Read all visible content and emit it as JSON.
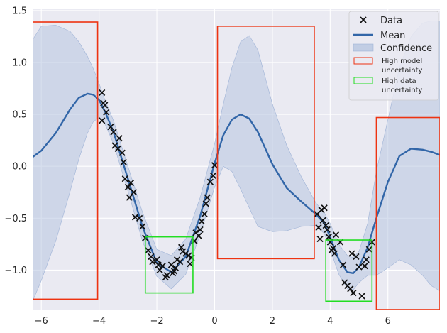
{
  "chart_data": {
    "type": "line",
    "title": "",
    "xlabel": "",
    "ylabel": "",
    "xlim": [
      -6.3,
      7.8
    ],
    "ylim": [
      -1.38,
      1.52
    ],
    "xticks": [
      -6,
      -4,
      -2,
      0,
      2,
      4,
      6
    ],
    "yticks": [
      -1.0,
      -0.5,
      0.0,
      0.5,
      1.0,
      1.5
    ],
    "xtick_labels": [
      "−6",
      "−4",
      "−2",
      "0",
      "2",
      "4",
      "6"
    ],
    "ytick_labels": [
      "−1.0",
      "−0.5",
      "0.0",
      "0.5",
      "1.0",
      "1.5"
    ],
    "grid": true,
    "legend_position": "top-right",
    "colors": {
      "background": "#eaeaf2",
      "mean": "#3266a8",
      "confidence": "#b6c5e0",
      "model_box": "#ee3311",
      "data_box": "#22dd22",
      "points": "#111111"
    },
    "legend": {
      "data": "Data",
      "mean": "Mean",
      "confidence": "Confidence",
      "model": [
        "High model",
        "uncertainty"
      ],
      "data_unc": [
        "High data",
        "uncertainty"
      ]
    },
    "mean": {
      "name": "Mean",
      "x": [
        -6.3,
        -6.0,
        -5.5,
        -5.0,
        -4.7,
        -4.4,
        -4.2,
        -4.0,
        -3.8,
        -3.5,
        -3.0,
        -2.5,
        -2.0,
        -1.5,
        -1.0,
        -0.5,
        0.0,
        0.3,
        0.6,
        0.9,
        1.2,
        1.5,
        2.0,
        2.5,
        3.0,
        3.5,
        3.8,
        4.0,
        4.3,
        4.6,
        4.8,
        5.0,
        5.3,
        5.6,
        6.0,
        6.4,
        6.8,
        7.2,
        7.5,
        7.8
      ],
      "y": [
        0.09,
        0.15,
        0.32,
        0.55,
        0.66,
        0.7,
        0.69,
        0.64,
        0.53,
        0.33,
        -0.12,
        -0.58,
        -0.93,
        -1.02,
        -0.87,
        -0.48,
        0.03,
        0.3,
        0.45,
        0.5,
        0.46,
        0.33,
        0.02,
        -0.21,
        -0.34,
        -0.46,
        -0.55,
        -0.68,
        -0.9,
        -1.02,
        -1.03,
        -0.97,
        -0.78,
        -0.5,
        -0.15,
        0.1,
        0.17,
        0.16,
        0.14,
        0.11
      ]
    },
    "confidence": {
      "name": "Confidence",
      "x": [
        -6.3,
        -6.0,
        -5.5,
        -5.0,
        -4.7,
        -4.4,
        -4.2,
        -4.0,
        -3.8,
        -3.5,
        -3.0,
        -2.5,
        -2.0,
        -1.5,
        -1.0,
        -0.5,
        0.0,
        0.3,
        0.6,
        0.9,
        1.2,
        1.5,
        2.0,
        2.5,
        3.0,
        3.5,
        3.8,
        4.0,
        4.3,
        4.6,
        4.8,
        5.0,
        5.3,
        5.6,
        6.0,
        6.4,
        6.8,
        7.2,
        7.5,
        7.8
      ],
      "upper": [
        1.22,
        1.35,
        1.36,
        1.3,
        1.2,
        1.06,
        0.94,
        0.8,
        0.64,
        0.44,
        0.0,
        -0.44,
        -0.8,
        -0.86,
        -0.7,
        -0.3,
        0.22,
        0.6,
        0.95,
        1.2,
        1.26,
        1.12,
        0.6,
        0.2,
        -0.1,
        -0.35,
        -0.45,
        -0.55,
        -0.75,
        -0.86,
        -0.88,
        -0.82,
        -0.55,
        -0.05,
        0.45,
        0.95,
        1.25,
        1.38,
        1.4,
        1.4
      ],
      "lower": [
        -1.3,
        -1.1,
        -0.72,
        -0.24,
        0.07,
        0.32,
        0.43,
        0.47,
        0.41,
        0.22,
        -0.24,
        -0.72,
        -1.06,
        -1.18,
        -1.04,
        -0.66,
        -0.2,
        0.0,
        -0.05,
        -0.22,
        -0.4,
        -0.58,
        -0.63,
        -0.62,
        -0.58,
        -0.57,
        -0.65,
        -0.8,
        -1.04,
        -1.18,
        -1.19,
        -1.12,
        -1.05,
        -1.05,
        -0.98,
        -0.9,
        -0.95,
        -1.05,
        -1.15,
        -1.2
      ]
    },
    "data_points": {
      "name": "Data",
      "x": [
        -3.9,
        -3.85,
        -3.8,
        -3.9,
        -3.75,
        -3.6,
        -3.5,
        -3.45,
        -3.35,
        -3.3,
        -3.2,
        -3.15,
        -3.1,
        -3.0,
        -2.95,
        -2.9,
        -2.8,
        -2.75,
        -2.6,
        -2.5,
        -2.4,
        -2.3,
        -2.2,
        -2.15,
        -2.0,
        -1.95,
        -1.9,
        -1.8,
        -1.7,
        -1.65,
        -1.5,
        -1.45,
        -1.4,
        -1.35,
        -1.3,
        -1.2,
        -1.15,
        -1.1,
        -1.0,
        -0.9,
        -0.85,
        -0.8,
        -0.7,
        -0.65,
        -0.55,
        -0.5,
        -0.45,
        -0.35,
        -0.3,
        -0.25,
        -0.15,
        -0.05,
        0.0,
        3.55,
        3.6,
        3.65,
        3.7,
        3.75,
        3.8,
        3.85,
        3.9,
        3.95,
        4.0,
        4.05,
        4.1,
        4.15,
        4.2,
        4.35,
        4.45,
        4.5,
        4.6,
        4.7,
        4.75,
        4.8,
        4.9,
        5.0,
        5.1,
        5.2,
        5.25,
        5.35,
        5.45
      ],
      "y": [
        0.71,
        0.61,
        0.59,
        0.44,
        0.52,
        0.38,
        0.33,
        0.2,
        0.17,
        0.27,
        0.13,
        0.04,
        -0.12,
        -0.2,
        -0.3,
        -0.16,
        -0.25,
        -0.49,
        -0.5,
        -0.58,
        -0.69,
        -0.81,
        -0.87,
        -0.92,
        -0.9,
        -0.95,
        -1.0,
        -0.96,
        -1.07,
        -1.05,
        -0.95,
        -1.03,
        -1.01,
        -0.98,
        -0.9,
        -0.92,
        -0.78,
        -0.82,
        -0.84,
        -0.86,
        -0.94,
        -0.88,
        -0.72,
        -0.64,
        -0.67,
        -0.61,
        -0.53,
        -0.46,
        -0.36,
        -0.3,
        -0.15,
        -0.09,
        0.01,
        -0.46,
        -0.59,
        -0.7,
        -0.42,
        -0.52,
        -0.4,
        -0.57,
        -0.61,
        -0.68,
        -0.73,
        -0.81,
        -0.79,
        -0.84,
        -0.66,
        -0.73,
        -0.95,
        -1.12,
        -1.15,
        -1.18,
        -0.84,
        -1.22,
        -0.87,
        -0.97,
        -1.25,
        -0.96,
        -0.9,
        -0.8,
        -0.73
      ]
    },
    "high_model_uncertainty_boxes": [
      {
        "x0": -6.3,
        "x1": -4.05,
        "y0": -1.28,
        "y1": 1.39
      },
      {
        "x0": 0.1,
        "x1": 3.45,
        "y0": -0.89,
        "y1": 1.35
      },
      {
        "x0": 5.6,
        "x1": 7.8,
        "y0": -1.38,
        "y1": 0.47
      }
    ],
    "high_data_uncertainty_boxes": [
      {
        "x0": -2.4,
        "x1": -0.75,
        "y0": -1.22,
        "y1": -0.68
      },
      {
        "x0": 3.85,
        "x1": 5.45,
        "y0": -1.3,
        "y1": -0.71
      }
    ]
  }
}
